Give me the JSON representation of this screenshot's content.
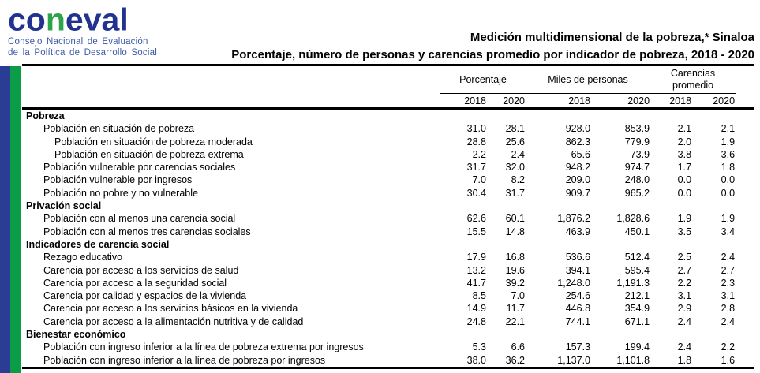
{
  "logo": {
    "mark_pre": "co",
    "mark_mid": "n",
    "mark_post": "eval",
    "subtitle_line1": "Consejo Nacional de Evaluación",
    "subtitle_line2": "de la Política de Desarrollo Social"
  },
  "title": {
    "line1": "Medición multidimensional de la pobreza,* Sinaloa",
    "line2": "Porcentaje, número de personas y carencias promedio por indicador de pobreza, 2018 - 2020"
  },
  "table": {
    "col_groups": [
      {
        "label": "Porcentaje",
        "years": [
          "2018",
          "2020"
        ]
      },
      {
        "label": "Miles de personas",
        "years": [
          "2018",
          "2020"
        ]
      },
      {
        "label": "Carencias promedio",
        "years": [
          "2018",
          "2020"
        ]
      }
    ],
    "sections": [
      {
        "header": "Pobreza",
        "rows": [
          {
            "label": "Población en situación de pobreza",
            "indent": 1,
            "values": [
              "31.0",
              "28.1",
              "928.0",
              "853.9",
              "2.1",
              "2.1"
            ]
          },
          {
            "label": "Población en situación de pobreza moderada",
            "indent": 2,
            "values": [
              "28.8",
              "25.6",
              "862.3",
              "779.9",
              "2.0",
              "1.9"
            ]
          },
          {
            "label": "Población en situación de pobreza extrema",
            "indent": 2,
            "values": [
              "2.2",
              "2.4",
              "65.6",
              "73.9",
              "3.8",
              "3.6"
            ]
          },
          {
            "label": "Población vulnerable por carencias sociales",
            "indent": 1,
            "values": [
              "31.7",
              "32.0",
              "948.2",
              "974.7",
              "1.7",
              "1.8"
            ]
          },
          {
            "label": "Población vulnerable por ingresos",
            "indent": 1,
            "values": [
              "7.0",
              "8.2",
              "209.0",
              "248.0",
              "0.0",
              "0.0"
            ]
          },
          {
            "label": "Población no pobre y no vulnerable",
            "indent": 1,
            "values": [
              "30.4",
              "31.7",
              "909.7",
              "965.2",
              "0.0",
              "0.0"
            ]
          }
        ]
      },
      {
        "header": "Privación social",
        "rows": [
          {
            "label": "Población con al menos una carencia social",
            "indent": 1,
            "values": [
              "62.6",
              "60.1",
              "1,876.2",
              "1,828.6",
              "1.9",
              "1.9"
            ]
          },
          {
            "label": "Población con al menos tres carencias sociales",
            "indent": 1,
            "values": [
              "15.5",
              "14.8",
              "463.9",
              "450.1",
              "3.5",
              "3.4"
            ]
          }
        ]
      },
      {
        "header": "Indicadores de carencia social",
        "rows": [
          {
            "label": "Rezago educativo",
            "indent": 1,
            "values": [
              "17.9",
              "16.8",
              "536.6",
              "512.4",
              "2.5",
              "2.4"
            ]
          },
          {
            "label": "Carencia por acceso a los servicios de salud",
            "indent": 1,
            "values": [
              "13.2",
              "19.6",
              "394.1",
              "595.4",
              "2.7",
              "2.7"
            ]
          },
          {
            "label": "Carencia por acceso a la seguridad social",
            "indent": 1,
            "values": [
              "41.7",
              "39.2",
              "1,248.0",
              "1,191.3",
              "2.2",
              "2.3"
            ]
          },
          {
            "label": "Carencia por calidad y espacios de la vivienda",
            "indent": 1,
            "values": [
              "8.5",
              "7.0",
              "254.6",
              "212.1",
              "3.1",
              "3.1"
            ]
          },
          {
            "label": "Carencia por acceso a los servicios básicos en la vivienda",
            "indent": 1,
            "values": [
              "14.9",
              "11.7",
              "446.8",
              "354.9",
              "2.9",
              "2.8"
            ]
          },
          {
            "label": "Carencia por acceso a la alimentación nutritiva y de calidad",
            "indent": 1,
            "values": [
              "24.8",
              "22.1",
              "744.1",
              "671.1",
              "2.4",
              "2.4"
            ]
          }
        ]
      },
      {
        "header": "Bienestar económico",
        "rows": [
          {
            "label": "Población con ingreso inferior a la línea de pobreza extrema por ingresos",
            "indent": 1,
            "values": [
              "5.3",
              "6.6",
              "157.3",
              "199.4",
              "2.4",
              "2.2"
            ]
          },
          {
            "label": "Población con ingreso inferior a la línea de pobreza por ingresos",
            "indent": 1,
            "values": [
              "38.0",
              "36.2",
              "1,137.0",
              "1,101.8",
              "1.8",
              "1.6"
            ]
          }
        ]
      }
    ]
  },
  "colors": {
    "logo_blue": "#21338F",
    "logo_green": "#2FA24C",
    "logo_text_blue": "#3E5AA8",
    "bar_blue": "#2B3C94",
    "bar_green": "#0A9C47"
  }
}
